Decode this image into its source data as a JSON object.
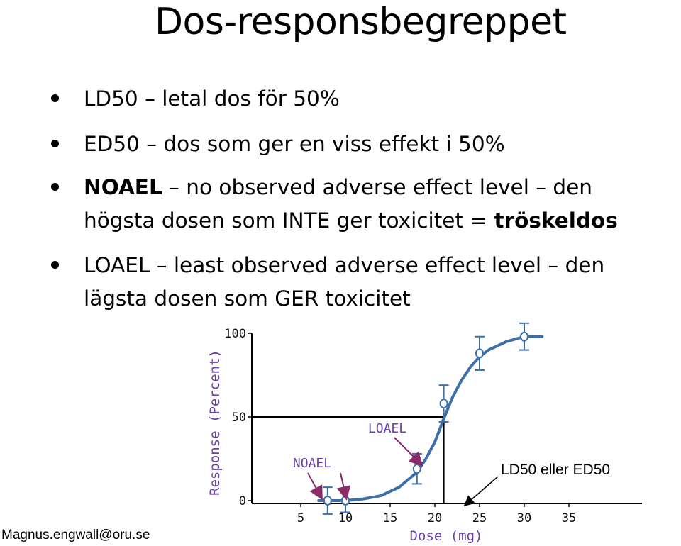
{
  "title": "Dos-responsbegreppet",
  "bullets": [
    {
      "lines": [
        [
          {
            "text": "LD50 – letal dos för 50%",
            "bold": false
          }
        ]
      ]
    },
    {
      "lines": [
        [
          {
            "text": "ED50 – dos som ger en viss effekt i 50%",
            "bold": false
          }
        ]
      ]
    },
    {
      "lines": [
        [
          {
            "text": "NOAEL",
            "bold": true
          },
          {
            "text": " – no observed adverse effect level – den",
            "bold": false
          }
        ],
        [
          {
            "text": "högsta dosen som INTE ger toxicitet = ",
            "bold": false
          },
          {
            "text": "tröskeldos",
            "bold": true
          }
        ]
      ]
    },
    {
      "lines": [
        [
          {
            "text": "LOAEL – least observed adverse effect level – den",
            "bold": false
          }
        ],
        [
          {
            "text": "lägsta dosen som GER toxicitet",
            "bold": false
          }
        ]
      ]
    }
  ],
  "chart_data": {
    "type": "line",
    "xlabel": "Dose (mg)",
    "ylabel": "Response (Percent)",
    "xlim": [
      4,
      37
    ],
    "ylim": [
      0,
      100
    ],
    "x_ticks": [
      5,
      10,
      15,
      20,
      25,
      30,
      35
    ],
    "y_ticks": [
      0,
      50,
      100
    ],
    "curve": {
      "x": [
        7,
        9,
        10,
        12,
        14,
        16,
        18,
        19,
        20,
        21,
        22,
        23,
        24,
        25,
        26,
        28,
        30,
        31,
        32
      ],
      "y": [
        0,
        0,
        0,
        1,
        3,
        8,
        17,
        25,
        35,
        49,
        62,
        72,
        80,
        86,
        90,
        95,
        98,
        98,
        98
      ]
    },
    "points": [
      {
        "x": 8,
        "y": 0,
        "err": 8
      },
      {
        "x": 10,
        "y": 0,
        "err": 7
      },
      {
        "x": 18,
        "y": 19,
        "err": 9
      },
      {
        "x": 21,
        "y": 58,
        "err": 11
      },
      {
        "x": 25,
        "y": 88,
        "err": 10
      },
      {
        "x": 30,
        "y": 98,
        "err": 8
      }
    ],
    "reference_line": {
      "x": 21,
      "y": 50
    },
    "annotations": [
      {
        "text": "NOAEL",
        "x": 10,
        "y": 0
      },
      {
        "text": "LOAEL",
        "x": 18,
        "y": 19
      },
      {
        "text": "LD50 eller ED50",
        "x": 21,
        "y": 0
      }
    ]
  },
  "footer": "Magnus.engwall@oru.se",
  "colors": {
    "curve": "#3d6fa8",
    "annotation": "#6a3fa8",
    "axis": "#000000"
  }
}
